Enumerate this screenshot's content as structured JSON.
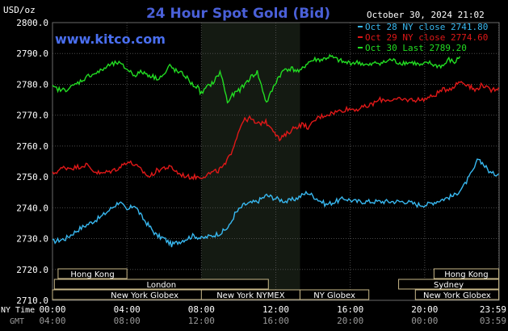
{
  "chart_data": {
    "type": "line",
    "title": "24 Hour Spot Gold (Bid)",
    "source_label": "www.kitco.com",
    "ylabel": "USD/oz",
    "date_label": "October 30, 2024 21:02",
    "ylim": [
      2710,
      2800
    ],
    "yticks": [
      "2800.0",
      "2790.0",
      "2780.0",
      "2770.0",
      "2760.0",
      "2750.0",
      "2740.0",
      "2730.0",
      "2720.0",
      "2710.0"
    ],
    "x_tz_primary": "NY Time",
    "x_tz_secondary": "GMT",
    "xticks_ny": [
      "00:00",
      "04:00",
      "08:00",
      "12:00",
      "16:00",
      "20:00",
      "23:59"
    ],
    "xticks_gmt": [
      "04:00",
      "08:00",
      "12:00",
      "16:00",
      "20:00",
      "00:00",
      "03:59"
    ],
    "highlight_hours": [
      8.0,
      13.3
    ],
    "series": [
      {
        "name": "Oct 28 NY close 2741.80",
        "color": "#38b8f0",
        "points": [
          [
            0,
            2729
          ],
          [
            0.7,
            2730
          ],
          [
            1.4,
            2733
          ],
          [
            2.0,
            2735
          ],
          [
            2.6,
            2737
          ],
          [
            3.2,
            2740
          ],
          [
            3.6,
            2742
          ],
          [
            4.0,
            2739
          ],
          [
            4.4,
            2741
          ],
          [
            4.8,
            2737
          ],
          [
            5.2,
            2734
          ],
          [
            5.6,
            2731
          ],
          [
            6.0,
            2730
          ],
          [
            6.4,
            2728
          ],
          [
            6.8,
            2729
          ],
          [
            7.2,
            2730
          ],
          [
            7.6,
            2731
          ],
          [
            8.0,
            2730
          ],
          [
            8.6,
            2731
          ],
          [
            9.1,
            2732
          ],
          [
            9.5,
            2734
          ],
          [
            9.8,
            2738
          ],
          [
            10.3,
            2741
          ],
          [
            11.0,
            2742
          ],
          [
            11.5,
            2744
          ],
          [
            12.0,
            2743
          ],
          [
            12.6,
            2742
          ],
          [
            13.1,
            2743
          ],
          [
            13.7,
            2745
          ],
          [
            14.2,
            2743
          ],
          [
            14.7,
            2741
          ],
          [
            15.2,
            2742
          ],
          [
            15.7,
            2743
          ],
          [
            16.3,
            2742
          ],
          [
            17.0,
            2742
          ],
          [
            17.6,
            2742
          ],
          [
            18.3,
            2742
          ],
          [
            19.0,
            2742
          ],
          [
            19.6,
            2741
          ],
          [
            20.1,
            2741
          ],
          [
            20.6,
            2742
          ],
          [
            21.1,
            2743
          ],
          [
            21.6,
            2744
          ],
          [
            22.1,
            2747
          ],
          [
            22.6,
            2752
          ],
          [
            22.9,
            2756
          ],
          [
            23.3,
            2753
          ],
          [
            23.6,
            2751
          ],
          [
            23.98,
            2751
          ]
        ]
      },
      {
        "name": "Oct 29 NY close 2774.60",
        "color": "#e01818",
        "points": [
          [
            0,
            2751
          ],
          [
            0.6,
            2753
          ],
          [
            1.2,
            2753
          ],
          [
            1.8,
            2754
          ],
          [
            2.2,
            2752
          ],
          [
            2.6,
            2751
          ],
          [
            3.2,
            2752
          ],
          [
            3.6,
            2753
          ],
          [
            4.0,
            2755
          ],
          [
            4.4,
            2754
          ],
          [
            4.8,
            2752
          ],
          [
            5.2,
            2750
          ],
          [
            5.6,
            2752
          ],
          [
            6.0,
            2753
          ],
          [
            6.4,
            2753
          ],
          [
            6.8,
            2751
          ],
          [
            7.3,
            2750
          ],
          [
            7.7,
            2750
          ],
          [
            8.0,
            2750
          ],
          [
            8.4,
            2751
          ],
          [
            8.9,
            2752
          ],
          [
            9.3,
            2754
          ],
          [
            9.6,
            2758
          ],
          [
            9.9,
            2763
          ],
          [
            10.2,
            2768
          ],
          [
            10.6,
            2769
          ],
          [
            11.0,
            2767
          ],
          [
            11.4,
            2768
          ],
          [
            11.8,
            2766
          ],
          [
            12.2,
            2762
          ],
          [
            12.6,
            2764
          ],
          [
            13.0,
            2766
          ],
          [
            13.4,
            2767
          ],
          [
            13.8,
            2766
          ],
          [
            14.2,
            2769
          ],
          [
            14.6,
            2770
          ],
          [
            15.2,
            2771
          ],
          [
            15.8,
            2772
          ],
          [
            16.4,
            2772
          ],
          [
            17.0,
            2773
          ],
          [
            17.6,
            2775
          ],
          [
            18.2,
            2775
          ],
          [
            18.8,
            2775
          ],
          [
            19.3,
            2775
          ],
          [
            19.8,
            2775
          ],
          [
            20.4,
            2776
          ],
          [
            20.9,
            2778
          ],
          [
            21.5,
            2779
          ],
          [
            21.9,
            2781
          ],
          [
            22.3,
            2780
          ],
          [
            22.7,
            2778
          ],
          [
            23.1,
            2780
          ],
          [
            23.5,
            2778
          ],
          [
            23.98,
            2779
          ]
        ]
      },
      {
        "name": "Oct 30 Last 2789.20",
        "color": "#22dd22",
        "points": [
          [
            0,
            2779
          ],
          [
            0.5,
            2778
          ],
          [
            1.0,
            2779
          ],
          [
            1.5,
            2781
          ],
          [
            2.0,
            2783
          ],
          [
            2.5,
            2784
          ],
          [
            3.0,
            2786
          ],
          [
            3.5,
            2787
          ],
          [
            4.0,
            2785
          ],
          [
            4.4,
            2783
          ],
          [
            4.8,
            2784
          ],
          [
            5.2,
            2783
          ],
          [
            5.6,
            2782
          ],
          [
            6.0,
            2783
          ],
          [
            6.3,
            2786
          ],
          [
            6.7,
            2784
          ],
          [
            7.1,
            2783
          ],
          [
            7.5,
            2780
          ],
          [
            7.8,
            2779
          ],
          [
            8.0,
            2777
          ],
          [
            8.3,
            2779
          ],
          [
            8.7,
            2781
          ],
          [
            9.0,
            2784
          ],
          [
            9.2,
            2780
          ],
          [
            9.4,
            2774
          ],
          [
            9.6,
            2776
          ],
          [
            9.8,
            2777
          ],
          [
            10.2,
            2779
          ],
          [
            10.6,
            2782
          ],
          [
            11.0,
            2784
          ],
          [
            11.3,
            2778
          ],
          [
            11.5,
            2774
          ],
          [
            11.8,
            2778
          ],
          [
            12.1,
            2782
          ],
          [
            12.5,
            2785
          ],
          [
            12.9,
            2785
          ],
          [
            13.3,
            2784
          ],
          [
            13.7,
            2787
          ],
          [
            14.1,
            2788
          ],
          [
            14.5,
            2788
          ],
          [
            14.9,
            2789
          ],
          [
            15.3,
            2788
          ],
          [
            15.7,
            2787
          ],
          [
            16.1,
            2787
          ],
          [
            16.5,
            2787
          ],
          [
            17.0,
            2786
          ],
          [
            17.4,
            2787
          ],
          [
            17.8,
            2787
          ],
          [
            18.2,
            2788
          ],
          [
            18.6,
            2787
          ],
          [
            19.0,
            2787
          ],
          [
            19.4,
            2787
          ],
          [
            19.8,
            2786
          ],
          [
            20.2,
            2787
          ],
          [
            20.6,
            2786
          ],
          [
            21.0,
            2786
          ],
          [
            21.3,
            2788
          ],
          [
            21.6,
            2787
          ],
          [
            21.9,
            2789
          ]
        ]
      }
    ],
    "sessions": [
      {
        "name": "Hong Kong",
        "start": 0.3,
        "end": 4.0,
        "row": 0
      },
      {
        "name": "Hong Kong",
        "start": 20.5,
        "end": 23.98,
        "row": 0
      },
      {
        "name": "London",
        "start": 0.1,
        "end": 11.6,
        "row": 1
      },
      {
        "name": "Sydney",
        "start": 18.6,
        "end": 23.98,
        "row": 1
      },
      {
        "name": "New York Globex",
        "start": 0.0,
        "end": 9.9,
        "row": 2
      },
      {
        "name": "New York NYMEX",
        "start": 8.0,
        "end": 13.3,
        "row": 2
      },
      {
        "name": "NY Globex",
        "start": 13.3,
        "end": 17.0,
        "row": 2
      },
      {
        "name": "New York Globex",
        "start": 19.5,
        "end": 23.98,
        "row": 2
      }
    ]
  }
}
